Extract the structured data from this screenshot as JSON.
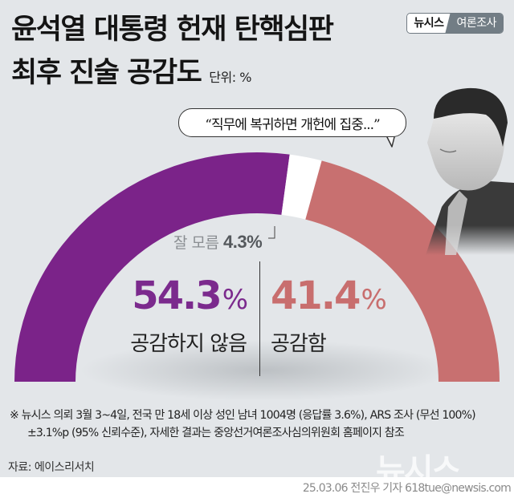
{
  "header": {
    "title_line1": "윤석열 대통령 헌재 탄핵심판",
    "title_line2": "최후 진술 공감도",
    "unit": "단위: %",
    "badge_brand": "뉴시스",
    "badge_type": "여론조사"
  },
  "quote": "“직무에 복귀하면 개헌에 집중...”",
  "colors": {
    "not_empathize": "#7b2389",
    "empathize": "#c87070",
    "dont_know": "#ffffff",
    "background": "#e3e6e9"
  },
  "labels": {
    "dont_know_label": "잘 모름",
    "dont_know_value": "4.3%",
    "not_empathize_value": "54.3",
    "not_empathize_label": "공감하지 않음",
    "empathize_value": "41.4",
    "empathize_label": "공감함",
    "percent_sign": "%"
  },
  "footer": {
    "note_line1": "※ 뉴시스 의뢰 3월 3~4일, 전국 만 18세 이상 성인 남녀 1004명 (응답률 3.6%), ARS 조사 (무선 100%)",
    "note_line2": "±3.1%p (95% 신뢰수준), 자세한 결과는 중앙선거여론조사심의위원회 홈페이지 참조",
    "source": "자료: 에이스리서치",
    "watermark": "뉴시스",
    "credit": "25.03.06 전진우 기자 618tue@newsis.com"
  },
  "chart_data": {
    "type": "pie",
    "subtype": "half-donut gauge",
    "title": "윤석열 대통령 헌재 탄핵심판 최후 진술 공감도",
    "unit": "%",
    "categories": [
      "공감하지 않음",
      "잘 모름",
      "공감함"
    ],
    "values": [
      54.3,
      4.3,
      41.4
    ],
    "colors": [
      "#7b2389",
      "#ffffff",
      "#c87070"
    ],
    "start_angle_deg": 180,
    "end_angle_deg": 0
  }
}
